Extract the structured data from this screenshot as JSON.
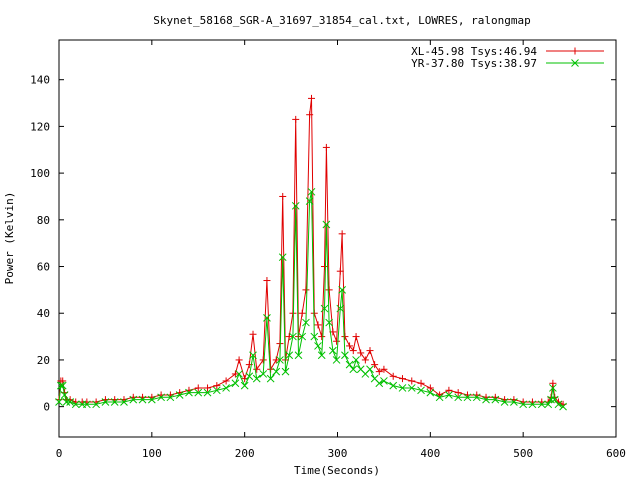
{
  "chart_data": {
    "type": "line",
    "title": "Skynet_58168_SGR-A_31697_31854_cal.txt, LOWRES, ralongmap",
    "xlabel": "Time(Seconds)",
    "ylabel": "Power (Kelvin)",
    "xlim": [
      0,
      600
    ],
    "ylim": [
      -13,
      157
    ],
    "xticks": [
      0,
      100,
      200,
      300,
      400,
      500,
      600
    ],
    "yticks": [
      0,
      20,
      40,
      60,
      80,
      100,
      120,
      140
    ],
    "legend_position": "top-right",
    "series": [
      {
        "name": "XL-45.98 Tsys:46.94",
        "color": "#e00000",
        "marker": "plus",
        "x": [
          0,
          2,
          4,
          6,
          8,
          12,
          18,
          25,
          30,
          40,
          50,
          60,
          70,
          80,
          90,
          100,
          110,
          120,
          130,
          140,
          150,
          160,
          170,
          180,
          190,
          194,
          200,
          205,
          209,
          213,
          220,
          224,
          228,
          234,
          238,
          241,
          244,
          248,
          252,
          255,
          258,
          262,
          266,
          270,
          272,
          275,
          279,
          283,
          286,
          288,
          291,
          295,
          299,
          303,
          305,
          308,
          313,
          317,
          320,
          325,
          330,
          335,
          340,
          345,
          350,
          360,
          370,
          380,
          390,
          400,
          410,
          420,
          430,
          440,
          450,
          460,
          470,
          480,
          490,
          500,
          510,
          520,
          527,
          530,
          532,
          534,
          538,
          543
        ],
        "values": [
          3,
          11,
          11,
          6,
          3,
          3,
          2,
          2,
          2,
          2,
          3,
          3,
          3,
          4,
          4,
          4,
          5,
          5,
          6,
          7,
          8,
          8,
          9,
          11,
          14,
          20,
          12,
          18,
          31,
          16,
          20,
          54,
          16,
          20,
          27,
          90,
          20,
          30,
          40,
          123,
          30,
          40,
          50,
          125,
          132,
          40,
          35,
          30,
          60,
          111,
          50,
          32,
          28,
          58,
          74,
          30,
          26,
          24,
          30,
          23,
          20,
          24,
          18,
          15,
          16,
          13,
          12,
          11,
          10,
          8,
          5,
          7,
          6,
          5,
          5,
          4,
          4,
          3,
          3,
          2,
          2,
          2,
          2,
          4,
          10,
          4,
          2,
          1
        ]
      },
      {
        "name": "YR-37.80 Tsys:38.97",
        "color": "#00c000",
        "marker": "x",
        "x": [
          0,
          2,
          4,
          6,
          8,
          12,
          18,
          25,
          30,
          40,
          50,
          60,
          70,
          80,
          90,
          100,
          110,
          120,
          130,
          140,
          150,
          160,
          170,
          180,
          190,
          194,
          200,
          205,
          209,
          213,
          220,
          224,
          228,
          234,
          238,
          241,
          244,
          248,
          252,
          255,
          258,
          262,
          266,
          270,
          272,
          275,
          279,
          283,
          286,
          288,
          291,
          295,
          299,
          303,
          305,
          308,
          313,
          317,
          320,
          325,
          330,
          335,
          340,
          345,
          350,
          360,
          370,
          380,
          390,
          400,
          410,
          420,
          430,
          440,
          450,
          460,
          470,
          480,
          490,
          500,
          510,
          520,
          527,
          530,
          532,
          534,
          538,
          543
        ],
        "values": [
          2,
          9,
          9,
          5,
          2,
          2,
          1,
          1,
          1,
          1,
          2,
          2,
          2,
          3,
          3,
          3,
          4,
          4,
          5,
          6,
          6,
          6,
          7,
          8,
          10,
          14,
          9,
          13,
          22,
          12,
          14,
          38,
          12,
          15,
          20,
          64,
          15,
          22,
          30,
          86,
          22,
          30,
          36,
          88,
          92,
          30,
          26,
          22,
          42,
          78,
          36,
          24,
          20,
          42,
          50,
          22,
          18,
          16,
          20,
          16,
          14,
          16,
          12,
          10,
          11,
          9,
          8,
          8,
          7,
          6,
          4,
          5,
          4,
          4,
          4,
          3,
          3,
          2,
          2,
          1,
          1,
          1,
          1,
          3,
          8,
          3,
          1,
          0
        ]
      }
    ]
  }
}
